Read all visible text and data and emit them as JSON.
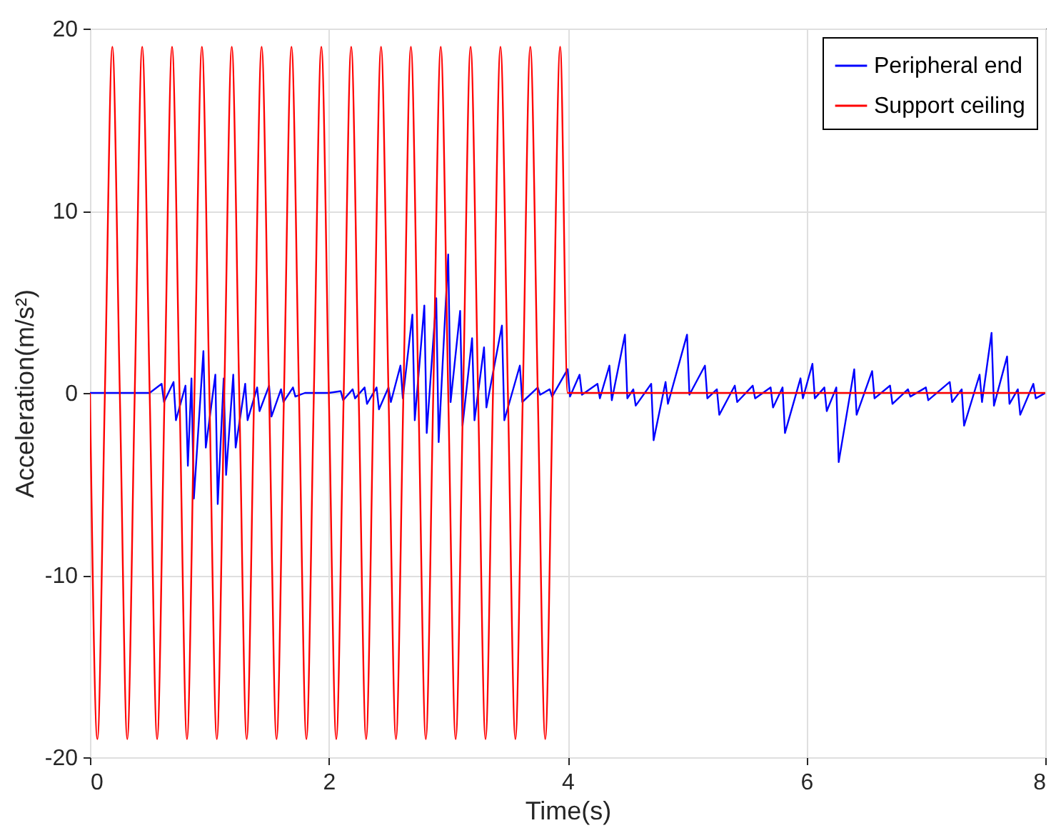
{
  "chart_data": {
    "type": "line",
    "xlabel": "Time(s)",
    "ylabel": "Acceleration(m/s²)",
    "xlim": [
      0,
      8
    ],
    "xticks": [
      0,
      2,
      4,
      6,
      8
    ],
    "ylim": [
      -20,
      20
    ],
    "yticks": [
      -20,
      -10,
      0,
      10,
      20
    ],
    "grid": true,
    "legend": "top right",
    "line_style": "solid",
    "marker": "none",
    "series": [
      {
        "name": "Peripheral end",
        "color": "#0000ff",
        "x": [
          0,
          0.5,
          0.6,
          0.62,
          0.7,
          0.72,
          0.8,
          0.82,
          0.85,
          0.87,
          0.95,
          0.97,
          1.05,
          1.07,
          1.12,
          1.14,
          1.2,
          1.22,
          1.3,
          1.32,
          1.4,
          1.42,
          1.5,
          1.52,
          1.6,
          1.62,
          1.7,
          1.72,
          1.8,
          2.0,
          2.1,
          2.12,
          2.2,
          2.22,
          2.3,
          2.32,
          2.4,
          2.42,
          2.5,
          2.52,
          2.6,
          2.62,
          2.7,
          2.72,
          2.8,
          2.82,
          2.9,
          2.92,
          3.0,
          3.02,
          3.1,
          3.12,
          3.2,
          3.22,
          3.3,
          3.32,
          3.45,
          3.47,
          3.6,
          3.62,
          3.75,
          3.77,
          3.85,
          3.87,
          4.0,
          4.02,
          4.1,
          4.12,
          4.25,
          4.27,
          4.35,
          4.37,
          4.48,
          4.5,
          4.55,
          4.57,
          4.7,
          4.72,
          4.82,
          4.84,
          5.0,
          5.02,
          5.15,
          5.17,
          5.25,
          5.27,
          5.4,
          5.42,
          5.55,
          5.57,
          5.7,
          5.72,
          5.8,
          5.82,
          5.95,
          5.97,
          6.05,
          6.07,
          6.15,
          6.17,
          6.25,
          6.27,
          6.4,
          6.42,
          6.55,
          6.57,
          6.7,
          6.72,
          6.85,
          6.87,
          7.0,
          7.02,
          7.2,
          7.22,
          7.3,
          7.32,
          7.45,
          7.47,
          7.55,
          7.57,
          7.68,
          7.7,
          7.77,
          7.79,
          7.9,
          7.92,
          8.0
        ],
        "values": [
          0,
          0,
          0.5,
          -0.5,
          0.6,
          -1.5,
          0.4,
          -4,
          0.8,
          -5.8,
          2.3,
          -3,
          1,
          -6.1,
          0.8,
          -4.5,
          1,
          -3,
          0.5,
          -1.5,
          0.3,
          -1,
          0.4,
          -1.3,
          0.2,
          -0.5,
          0.3,
          -0.2,
          0,
          0,
          0.1,
          -0.4,
          0.2,
          -0.3,
          0.3,
          -0.6,
          0.3,
          -0.9,
          0.3,
          -0.5,
          1.5,
          -0.3,
          4.3,
          -1.5,
          4.8,
          -2.2,
          5.2,
          -2.7,
          7.6,
          -0.5,
          4.5,
          -1.8,
          3,
          -1.5,
          2.5,
          -0.8,
          3.7,
          -1.5,
          1.5,
          -0.5,
          0.3,
          -0.1,
          0.2,
          -0.2,
          1.3,
          -0.2,
          1,
          -0.1,
          0.5,
          -0.3,
          1.5,
          -0.4,
          3.2,
          -0.3,
          0.2,
          -0.7,
          0.5,
          -2.6,
          0.6,
          -0.6,
          3.2,
          -0.1,
          1.5,
          -0.3,
          0.2,
          -1.2,
          0.4,
          -0.5,
          0.4,
          -0.3,
          0.3,
          -0.8,
          0.3,
          -2.2,
          0.8,
          -0.3,
          1.6,
          -0.3,
          0.3,
          -1,
          0.3,
          -3.8,
          1.3,
          -1.2,
          1.2,
          -0.3,
          0.4,
          -0.6,
          0.2,
          -0.2,
          0.3,
          -0.4,
          0.6,
          -0.5,
          0.2,
          -1.8,
          1,
          -0.5,
          3.3,
          -0.7,
          2,
          -0.6,
          0.2,
          -1.2,
          0.5,
          -0.3,
          0
        ]
      },
      {
        "name": "Support ceiling",
        "color": "#ff0000",
        "x": [
          0,
          0.0625,
          0.125,
          0.1875,
          0.25,
          0.3125,
          0.375,
          0.4375,
          0.5,
          0.5625,
          0.625,
          0.6875,
          0.75,
          0.8125,
          0.875,
          0.9375,
          1,
          1.0625,
          1.125,
          1.1875,
          1.25,
          1.3125,
          1.375,
          1.4375,
          1.5,
          1.5625,
          1.625,
          1.6875,
          1.75,
          1.8125,
          1.875,
          1.9375,
          2,
          2.0625,
          2.125,
          2.1875,
          2.25,
          2.3125,
          2.375,
          2.4375,
          2.5,
          2.5625,
          2.625,
          2.6875,
          2.75,
          2.8125,
          2.875,
          2.9375,
          3,
          3.0625,
          3.125,
          3.1875,
          3.25,
          3.3125,
          3.375,
          3.4375,
          3.5,
          3.5625,
          3.625,
          3.6875,
          3.75,
          3.8125,
          3.875,
          3.9375,
          4,
          8
        ],
        "values": [
          0,
          -19,
          0,
          19,
          0,
          -19,
          0,
          19,
          0,
          -19,
          0,
          19,
          0,
          -19,
          0,
          19,
          0,
          -19,
          0,
          19,
          0,
          -19,
          0,
          19,
          0,
          -19,
          0,
          19,
          0,
          -19,
          0,
          19,
          0,
          -19,
          0,
          19,
          0,
          -19,
          0,
          19,
          0,
          -19,
          0,
          19,
          0,
          -19,
          0,
          19,
          0,
          -19,
          0,
          19,
          0,
          -19,
          0,
          19,
          0,
          -19,
          0,
          19,
          0,
          -19,
          0,
          19,
          0,
          0
        ]
      }
    ]
  }
}
